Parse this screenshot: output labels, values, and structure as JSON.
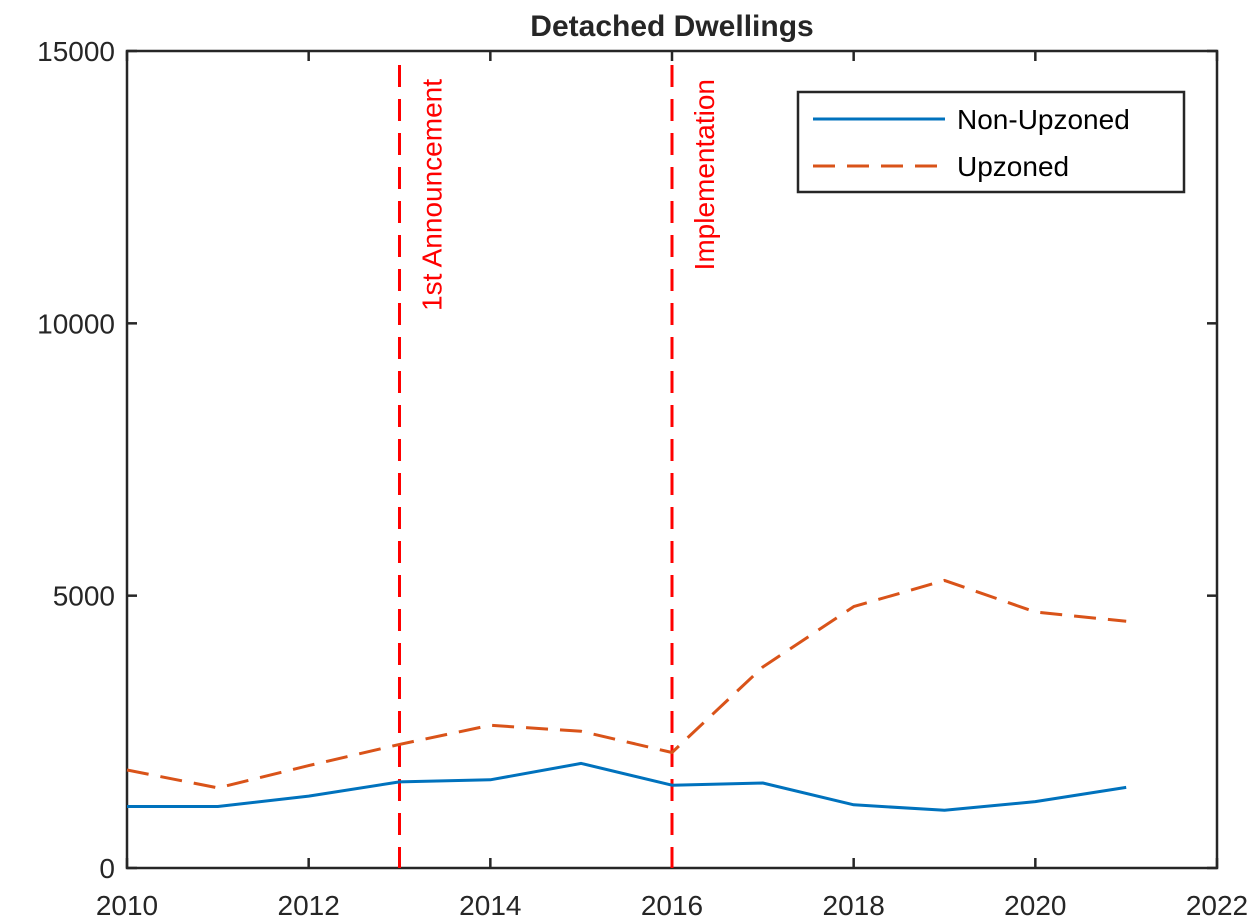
{
  "chart_data": {
    "type": "line",
    "title": "Detached Dwellings",
    "xlabel": "",
    "ylabel": "",
    "xlim": [
      2010,
      2022
    ],
    "ylim": [
      0,
      15000
    ],
    "x_ticks": [
      2010,
      2012,
      2014,
      2016,
      2018,
      2020,
      2022
    ],
    "y_ticks": [
      0,
      5000,
      10000,
      15000
    ],
    "x_tick_labels": [
      "2010",
      "2012",
      "2014",
      "2016",
      "2018",
      "2020",
      "2022"
    ],
    "y_tick_labels": [
      "0",
      "5000",
      "10000",
      "15000"
    ],
    "x": [
      2010,
      2011,
      2012,
      2013,
      2014,
      2015,
      2016,
      2017,
      2018,
      2019,
      2020,
      2021
    ],
    "series": [
      {
        "name": "Non-Upzoned",
        "style": "solid",
        "color": "#0072BD",
        "values": [
          1130,
          1130,
          1320,
          1580,
          1620,
          1920,
          1520,
          1560,
          1160,
          1060,
          1220,
          1480
        ]
      },
      {
        "name": "Upzoned",
        "style": "dashed",
        "color": "#D95319",
        "values": [
          1800,
          1470,
          1880,
          2270,
          2620,
          2510,
          2120,
          3690,
          4800,
          5280,
          4700,
          4530
        ]
      }
    ],
    "vlines": [
      {
        "x": 2013,
        "label": "1st Announcement",
        "color": "#FF0000"
      },
      {
        "x": 2016,
        "label": "Implementation",
        "color": "#FF0000"
      }
    ],
    "legend": {
      "position": "top-right"
    },
    "grid": false
  }
}
